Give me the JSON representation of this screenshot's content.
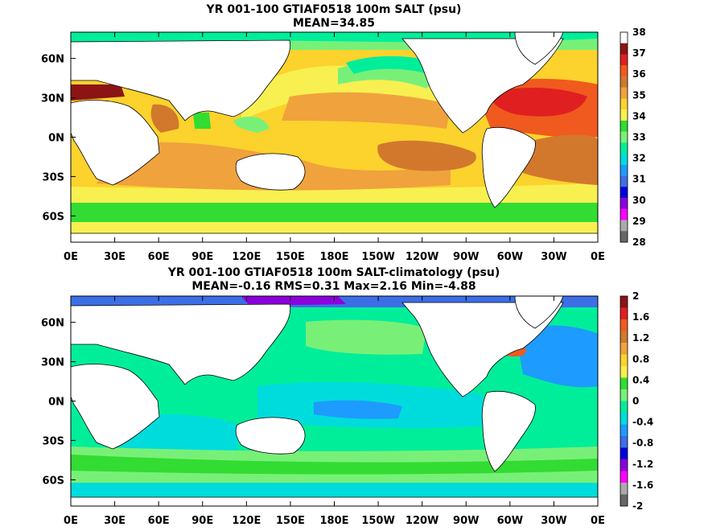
{
  "chart_data": [
    {
      "type": "heatmap",
      "title": "YR 001-100 GTIAF0518 100m SALT (psu)",
      "subtitle": "MEAN=34.85",
      "projection": "cylindrical equidistant, 0E to 360E",
      "xlim": [
        0,
        360
      ],
      "ylim": [
        -80,
        80
      ],
      "xticks": [
        "0E",
        "30E",
        "60E",
        "90E",
        "120E",
        "150E",
        "180E",
        "150W",
        "120W",
        "90W",
        "60W",
        "30W",
        "0E"
      ],
      "yticks": [
        "60N",
        "30N",
        "0N",
        "30S",
        "60S"
      ],
      "ytick_values": [
        60,
        30,
        0,
        -30,
        -60
      ],
      "colorbar": {
        "labels": [
          "38",
          "37",
          "36",
          "35",
          "34",
          "33",
          "32",
          "31",
          "30",
          "29",
          "28"
        ],
        "colors": [
          "#ffffff",
          "#8c1414",
          "#e02020",
          "#f05a1e",
          "#d2782d",
          "#f0a23c",
          "#fcd22d",
          "#f8f050",
          "#32dc32",
          "#78f078",
          "#00ee9a",
          "#00dcdc",
          "#1e9bff",
          "#3c6ee6",
          "#0000dc",
          "#8c00dc",
          "#ff00ff",
          "#aaaaaa",
          "#666666"
        ]
      },
      "regions": [
        {
          "lon": [
            0,
            360
          ],
          "lat": [
            -80,
            80
          ],
          "value": "34.5-35"
        },
        {
          "lon": [
            150,
            300
          ],
          "lat": [
            20,
            65
          ],
          "value": "33.5-34"
        },
        {
          "lon": [
            180,
            250
          ],
          "lat": [
            40,
            62
          ],
          "value": "32.5-33"
        },
        {
          "lon": [
            0,
            360
          ],
          "lat": [
            -75,
            -55
          ],
          "value": "34-34.5"
        },
        {
          "lon": [
            295,
            360
          ],
          "lat": [
            10,
            40
          ],
          "value": "36.5-37"
        },
        {
          "lon": [
            200,
            290
          ],
          "lat": [
            -30,
            -10
          ],
          "value": "35.5-36"
        },
        {
          "lon": [
            45,
            75
          ],
          "lat": [
            10,
            25
          ],
          "value": "35.5-36"
        },
        {
          "lon": [
            0,
            30
          ],
          "lat": [
            30,
            45
          ],
          "value": "37-38"
        }
      ]
    },
    {
      "type": "heatmap",
      "title": "YR 001-100 GTIAF0518 100m SALT-climatology (psu)",
      "subtitle": "MEAN=-0.16   RMS=0.31   Max=2.16   Min=-4.88",
      "projection": "cylindrical equidistant, 0E to 360E",
      "xlim": [
        0,
        360
      ],
      "ylim": [
        -80,
        80
      ],
      "xticks": [
        "0E",
        "30E",
        "60E",
        "90E",
        "120E",
        "150E",
        "180E",
        "150W",
        "120W",
        "90W",
        "60W",
        "30W",
        "0E"
      ],
      "yticks": [
        "60N",
        "30N",
        "0N",
        "30S",
        "60S"
      ],
      "ytick_values": [
        60,
        30,
        0,
        -30,
        -60
      ],
      "colorbar": {
        "labels": [
          "2",
          "1.6",
          "1.2",
          "0.8",
          "0.4",
          "0",
          "-0.4",
          "-0.8",
          "-1.2",
          "-1.6",
          "-2"
        ],
        "colors": [
          "#8c1414",
          "#e02020",
          "#f05a1e",
          "#d2782d",
          "#f0a23c",
          "#fcd22d",
          "#f8f050",
          "#32dc32",
          "#78f078",
          "#00ee9a",
          "#00dcdc",
          "#1e9bff",
          "#3c6ee6",
          "#0000dc",
          "#8c00dc",
          "#ff00ff",
          "#aaaaaa",
          "#666666"
        ]
      },
      "regions": [
        {
          "lon": [
            0,
            360
          ],
          "lat": [
            -80,
            80
          ],
          "value": "-0.2-0"
        },
        {
          "lon": [
            0,
            360
          ],
          "lat": [
            -65,
            -45
          ],
          "value": "0-0.2"
        },
        {
          "lon": [
            150,
            270
          ],
          "lat": [
            -20,
            10
          ],
          "value": "-0.4 to -0.6"
        },
        {
          "lon": [
            300,
            360
          ],
          "lat": [
            20,
            60
          ],
          "value": "-0.4 to -0.6"
        },
        {
          "lon": [
            0,
            360
          ],
          "lat": [
            70,
            80
          ],
          "value": "-1 to -2"
        },
        {
          "lon": [
            200,
            215
          ],
          "lat": [
            40,
            45
          ],
          "value": "0.4-0.6"
        },
        {
          "lon": [
            305,
            320
          ],
          "lat": [
            40,
            45
          ],
          "value": "0.6-1"
        }
      ]
    }
  ]
}
